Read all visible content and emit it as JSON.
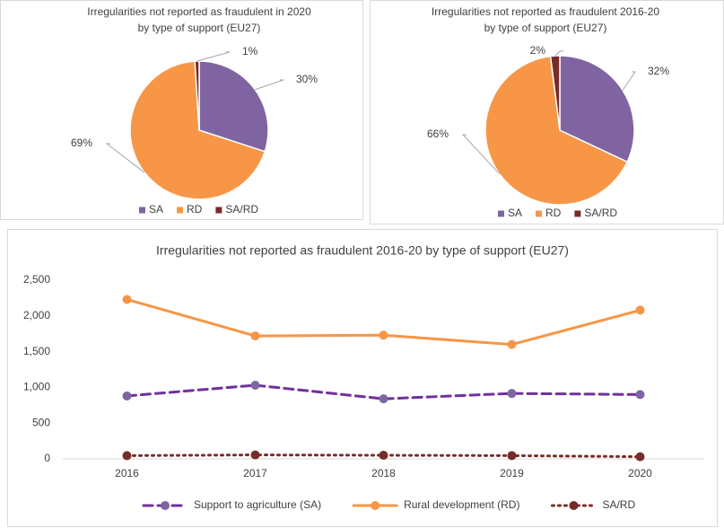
{
  "chart_data": [
    {
      "type": "pie",
      "title": [
        "Irregularities not reported as fraudulent  in 2020",
        "by type of support (EU27)"
      ],
      "categories": [
        "SA",
        "RD",
        "SA/RD"
      ],
      "values": [
        30,
        69,
        1
      ],
      "value_labels": [
        "30%",
        "69%",
        "1%"
      ],
      "colors": [
        "#8064a2",
        "#f79646",
        "#772c2a"
      ],
      "legend": "bottom"
    },
    {
      "type": "pie",
      "title": [
        "Irregularities not reported as fraudulent 2016-20",
        "by type of support (EU27)"
      ],
      "categories": [
        "SA",
        "RD",
        "SA/RD"
      ],
      "values": [
        32,
        66,
        2
      ],
      "value_labels": [
        "32%",
        "66%",
        "2%"
      ],
      "colors": [
        "#8064a2",
        "#f79646",
        "#772c2a"
      ],
      "legend": "bottom"
    },
    {
      "type": "line",
      "title": "Irregularities not reported as fraudulent 2016-20 by type of support (EU27)",
      "categories": [
        "2016",
        "2017",
        "2018",
        "2019",
        "2020"
      ],
      "series": [
        {
          "name": "Support to agriculture (SA)",
          "color": "#7030a0",
          "line_style": "dashed",
          "values": [
            880,
            1030,
            840,
            915,
            900
          ]
        },
        {
          "name": "Rural development (RD)",
          "color": "#f79646",
          "line_style": "solid",
          "values": [
            2230,
            1720,
            1730,
            1600,
            2080
          ]
        },
        {
          "name": "SA/RD",
          "color": "#772c2a",
          "line_style": "dotted",
          "values": [
            45,
            55,
            50,
            45,
            30
          ]
        }
      ],
      "ylim": [
        0,
        2500
      ],
      "yticks": [
        0,
        500,
        {
          "value": 1000,
          "label": "1,000"
        },
        {
          "value": 1500,
          "label": "1,500"
        },
        {
          "value": 2000,
          "label": "2,000"
        },
        {
          "value": 2500,
          "label": "2,500"
        }
      ],
      "grid": false,
      "legend": "bottom"
    }
  ]
}
